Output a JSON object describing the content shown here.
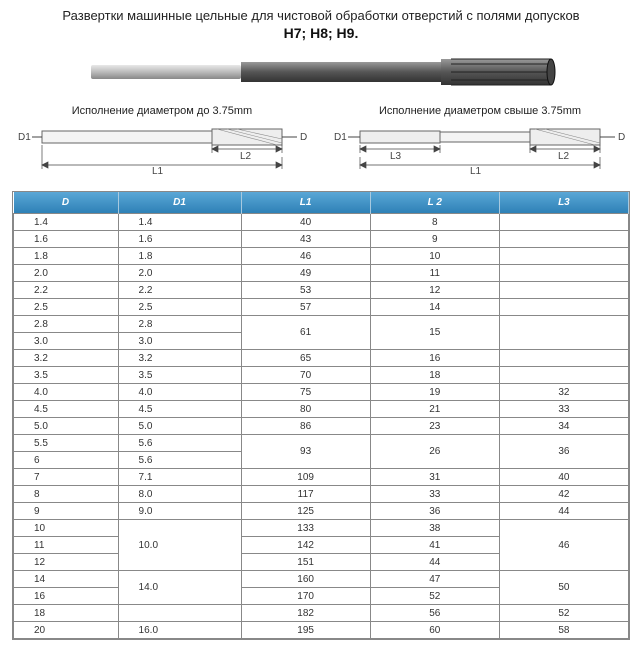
{
  "title_line1": "Развертки машинные цельные для чистовой обработки отверстий с полями допусков",
  "title_line2": "H7; H8; H9.",
  "diagram_left_caption": "Исполнение диаметром до 3.75mm",
  "diagram_right_caption": "Исполнение диаметром свыше  3.75mm",
  "labels": {
    "D": "D",
    "D1": "D1",
    "L1": "L1",
    "L2": "L2",
    "L3": "L3"
  },
  "table": {
    "columns": [
      "D",
      "D1",
      "L1",
      "L 2",
      "L3"
    ],
    "col_align": [
      "left",
      "left",
      "center",
      "center",
      "center"
    ],
    "rows": [
      {
        "d": "1.4",
        "d1": "1.4",
        "l1": "40",
        "l2": "8",
        "l3": ""
      },
      {
        "d": "1.6",
        "d1": "1.6",
        "l1": "43",
        "l2": "9",
        "l3": ""
      },
      {
        "d": "1.8",
        "d1": "1.8",
        "l1": "46",
        "l2": "10",
        "l3": ""
      },
      {
        "d": "2.0",
        "d1": "2.0",
        "l1": "49",
        "l2": "11",
        "l3": ""
      },
      {
        "d": "2.2",
        "d1": "2.2",
        "l1": "53",
        "l2": "12",
        "l3": ""
      },
      {
        "d": "2.5",
        "d1": "2.5",
        "l1": "57",
        "l2": "14",
        "l3": ""
      },
      {
        "d": "2.8",
        "d1": "2.8",
        "l1": null,
        "l2": null,
        "l3": null
      },
      {
        "d": "3.0",
        "d1": "3.0",
        "l1": "61",
        "l2": "15",
        "l3": ""
      },
      {
        "d": "3.2",
        "d1": "3.2",
        "l1": "65",
        "l2": "16",
        "l3": ""
      },
      {
        "d": "3.5",
        "d1": "3.5",
        "l1": "70",
        "l2": "18",
        "l3": ""
      },
      {
        "d": "4.0",
        "d1": "4.0",
        "l1": "75",
        "l2": "19",
        "l3": "32"
      },
      {
        "d": "4.5",
        "d1": "4.5",
        "l1": "80",
        "l2": "21",
        "l3": "33"
      },
      {
        "d": "5.0",
        "d1": "5.0",
        "l1": "86",
        "l2": "23",
        "l3": "34"
      },
      {
        "d": "5.5",
        "d1": "5.6",
        "l1": null,
        "l2": null,
        "l3": null
      },
      {
        "d": "6",
        "d1": "5.6",
        "l1": "93",
        "l2": "26",
        "l3": "36"
      },
      {
        "d": "7",
        "d1": "7.1",
        "l1": "109",
        "l2": "31",
        "l3": "40"
      },
      {
        "d": "8",
        "d1": "8.0",
        "l1": "117",
        "l2": "33",
        "l3": "42"
      },
      {
        "d": "9",
        "d1": "9.0",
        "l1": "125",
        "l2": "36",
        "l3": "44"
      },
      {
        "d": "10",
        "d1": null,
        "l1": "133",
        "l2": "38",
        "l3": null
      },
      {
        "d": "11",
        "d1": "10.0",
        "l1": "142",
        "l2": "41",
        "l3": "46"
      },
      {
        "d": "12",
        "d1": null,
        "l1": "151",
        "l2": "44",
        "l3": null
      },
      {
        "d": "14",
        "d1": null,
        "l1": "160",
        "l2": "47",
        "l3": null
      },
      {
        "d": "16",
        "d1": "14.0",
        "l1": "170",
        "l2": "52",
        "l3": "50"
      },
      {
        "d": "18",
        "d1": null,
        "l1": "182",
        "l2": "56",
        "l3": "52"
      },
      {
        "d": "20",
        "d1": "16.0",
        "l1": "195",
        "l2": "60",
        "l3": "58"
      }
    ],
    "merges": {
      "l1_l2_l3_empty_pairs": [
        {
          "start": 6,
          "span": 2,
          "l1": "61",
          "l2": "15",
          "l3": ""
        },
        {
          "start": 13,
          "span": 2,
          "l1": "93",
          "l2": "26",
          "l3": "36"
        }
      ],
      "d1_groups": [
        {
          "start": 18,
          "span": 3,
          "value": "10.0"
        },
        {
          "start": 21,
          "span": 2,
          "value": "14.0"
        }
      ],
      "l3_groups": [
        {
          "start": 18,
          "span": 3,
          "value": "46"
        },
        {
          "start": 21,
          "span": 2,
          "value": "50"
        }
      ]
    }
  },
  "colors": {
    "header_grad_top": "#5aa7d6",
    "header_grad_bottom": "#2c7fb5",
    "border": "#888888",
    "tool_body": "#6d6d6d",
    "tool_shank": "#b5b5b5"
  }
}
